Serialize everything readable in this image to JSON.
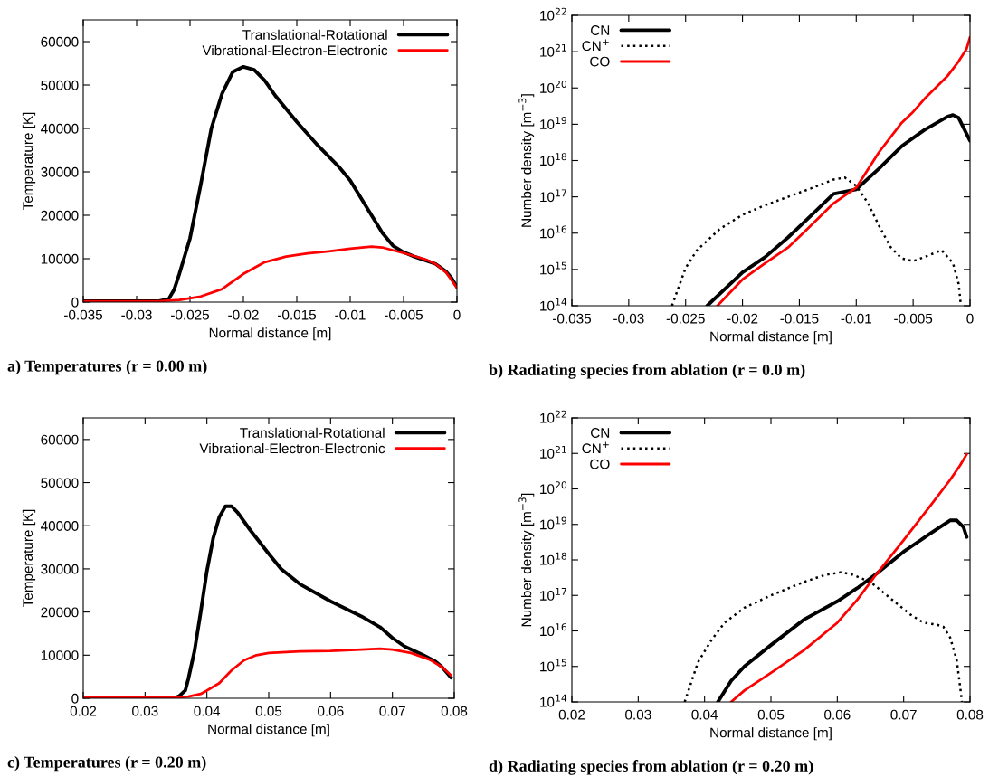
{
  "chart_data": [
    {
      "type": "line",
      "title": "a) Temperatures (r = 0.00 m)",
      "xlabel": "Normal distance [m]",
      "ylabel": "Temperature [K]",
      "xlim": [
        -0.035,
        0
      ],
      "ylim": [
        0,
        65000
      ],
      "xticks": [
        -0.035,
        -0.03,
        -0.025,
        -0.02,
        -0.015,
        -0.01,
        -0.005,
        0
      ],
      "yticks": [
        0,
        10000,
        20000,
        30000,
        40000,
        50000,
        60000
      ],
      "legend": "top right",
      "grid": false,
      "series": [
        {
          "name": "Translational-Rotational",
          "color": "#000000",
          "x": [
            -0.035,
            -0.028,
            -0.027,
            -0.0265,
            -0.026,
            -0.025,
            -0.024,
            -0.023,
            -0.022,
            -0.021,
            -0.02,
            -0.019,
            -0.018,
            -0.017,
            -0.015,
            -0.013,
            -0.011,
            -0.01,
            -0.008,
            -0.007,
            -0.006,
            -0.005,
            -0.004,
            -0.002,
            -0.001,
            -0.0005,
            0
          ],
          "values": [
            200,
            200,
            700,
            2800,
            6500,
            14700,
            27000,
            40000,
            48000,
            53000,
            54200,
            53500,
            51000,
            47500,
            41500,
            36000,
            31000,
            28000,
            20000,
            16000,
            13000,
            11500,
            10500,
            8800,
            7000,
            5500,
            3500
          ]
        },
        {
          "name": "Vibrational-Electron-Electronic",
          "color": "#ff0000",
          "x": [
            -0.035,
            -0.028,
            -0.026,
            -0.024,
            -0.022,
            -0.02,
            -0.018,
            -0.016,
            -0.014,
            -0.012,
            -0.01,
            -0.008,
            -0.007,
            -0.005,
            -0.003,
            -0.002,
            -0.001,
            0
          ],
          "values": [
            200,
            200,
            500,
            1300,
            3000,
            6500,
            9200,
            10500,
            11200,
            11700,
            12300,
            12800,
            12600,
            11300,
            9900,
            8800,
            6800,
            3300
          ]
        }
      ]
    },
    {
      "type": "line",
      "title": "b) Radiating species from ablation (r = 0.0 m)",
      "xlabel": "Normal distance [m]",
      "ylabel": "Number density [m$^{−3}$]",
      "log": "y",
      "xlim": [
        -0.035,
        0
      ],
      "ylim": [
        100000000000000.0,
        1e+22
      ],
      "xticks": [
        -0.035,
        -0.03,
        -0.025,
        -0.02,
        -0.015,
        -0.01,
        -0.005,
        0
      ],
      "yticks": [
        {
          "value": 100000000000000.0,
          "label": "10$^{14}$"
        },
        {
          "value": 1000000000000000.0,
          "label": "10$^{15}$"
        },
        {
          "value": 1e+16,
          "label": "10$^{16}$"
        },
        {
          "value": 1e+17,
          "label": "10$^{17}$"
        },
        {
          "value": 1e+18,
          "label": "10$^{18}$"
        },
        {
          "value": 1e+19,
          "label": "10$^{19}$"
        },
        {
          "value": 1e+20,
          "label": "10$^{20}$"
        },
        {
          "value": 1e+21,
          "label": "10$^{21}$"
        },
        {
          "value": 1e+22,
          "label": "10$^{22}$"
        }
      ],
      "legend": "top left",
      "grid": false,
      "series": [
        {
          "name": "CN",
          "color": "#000000",
          "line_style": "solid",
          "x": [
            -0.0231,
            -0.02,
            -0.018,
            -0.016,
            -0.014,
            -0.012,
            -0.01,
            -0.008,
            -0.006,
            -0.004,
            -0.002,
            -0.0015,
            -0.001,
            0
          ],
          "values": [
            100000000000000.0,
            830000000000000.0,
            2200000000000000.0,
            7600000000000000.0,
            3e+16,
            1.2e+17,
            1.6e+17,
            6e+17,
            2.5e+18,
            7e+18,
            1.6e+19,
            1.8e+19,
            1.5e+19,
            3.5e+18
          ]
        },
        {
          "name": "CN$^{+}$",
          "color": "#000000",
          "line_style": "dotted",
          "x": [
            -0.0262,
            -0.025,
            -0.024,
            -0.022,
            -0.02,
            -0.018,
            -0.016,
            -0.014,
            -0.012,
            -0.011,
            -0.01,
            -0.009,
            -0.008,
            -0.007,
            -0.006,
            -0.005,
            -0.004,
            -0.0025,
            -0.0015,
            -0.001,
            -0.0008
          ],
          "values": [
            100000000000000.0,
            1100000000000000.0,
            3400000000000000.0,
            1.3e+16,
            3.2e+16,
            5.9e+16,
            1e+17,
            1.7e+17,
            3e+17,
            3.4e+17,
            2e+17,
            7e+16,
            1.6e+16,
            4200000000000000.0,
            2000000000000000.0,
            1700000000000000.0,
            2200000000000000.0,
            3400000000000000.0,
            1500000000000000.0,
            400000000000000.0,
            100000000000000.0
          ]
        },
        {
          "name": "CO",
          "color": "#ff0000",
          "line_style": "solid",
          "x": [
            -0.0222,
            -0.02,
            -0.018,
            -0.016,
            -0.014,
            -0.012,
            -0.01,
            -0.008,
            -0.006,
            -0.005,
            -0.004,
            -0.002,
            -0.001,
            -0.0003,
            0
          ],
          "values": [
            100000000000000.0,
            530000000000000.0,
            1500000000000000.0,
            4000000000000000.0,
            1.6e+16,
            6.6e+16,
            1.8e+17,
            1.7e+18,
            1.1e+19,
            2.2e+19,
            5e+19,
            2.1e+20,
            5.4e+20,
            1.2e+21,
            2.5e+21
          ]
        }
      ]
    },
    {
      "type": "line",
      "title": "c) Temperatures (r = 0.20 m)",
      "xlabel": "Normal distance [m]",
      "ylabel": "Temperature [K]",
      "xlim": [
        0.02,
        0.08
      ],
      "ylim": [
        0,
        65000
      ],
      "xticks": [
        0.02,
        0.03,
        0.04,
        0.05,
        0.06,
        0.07,
        0.08
      ],
      "yticks": [
        0,
        10000,
        20000,
        30000,
        40000,
        50000,
        60000
      ],
      "legend": "top right",
      "grid": false,
      "series": [
        {
          "name": "Translational-Rotational",
          "color": "#000000",
          "x": [
            0.02,
            0.035,
            0.0355,
            0.0365,
            0.037,
            0.038,
            0.039,
            0.04,
            0.041,
            0.042,
            0.043,
            0.044,
            0.045,
            0.047,
            0.05,
            0.052,
            0.055,
            0.06,
            0.065,
            0.068,
            0.07,
            0.072,
            0.075,
            0.077,
            0.078,
            0.0795
          ],
          "values": [
            200,
            200,
            500,
            1800,
            4500,
            11000,
            20000,
            29500,
            37000,
            42000,
            44500,
            44500,
            43000,
            39000,
            33500,
            30000,
            26500,
            22500,
            19000,
            16500,
            14000,
            12000,
            10000,
            8500,
            7300,
            4800
          ]
        },
        {
          "name": "Vibrational-Electron-Electronic",
          "color": "#ff0000",
          "x": [
            0.02,
            0.035,
            0.037,
            0.039,
            0.04,
            0.042,
            0.044,
            0.046,
            0.048,
            0.05,
            0.055,
            0.06,
            0.065,
            0.068,
            0.07,
            0.073,
            0.076,
            0.078,
            0.0795
          ],
          "values": [
            200,
            200,
            400,
            1000,
            1800,
            3500,
            6500,
            8800,
            10000,
            10500,
            10900,
            11000,
            11300,
            11500,
            11300,
            10500,
            9000,
            7300,
            5300
          ]
        }
      ]
    },
    {
      "type": "line",
      "title": "d) Radiating species from ablation (r = 0.20 m)",
      "xlabel": "Normal distance [m]",
      "ylabel": "Number density [m$^{−3}$]",
      "log": "y",
      "xlim": [
        0.02,
        0.08
      ],
      "ylim": [
        100000000000000.0,
        1e+22
      ],
      "xticks": [
        0.02,
        0.03,
        0.04,
        0.05,
        0.06,
        0.07,
        0.08
      ],
      "yticks": [
        {
          "value": 100000000000000.0,
          "label": "10$^{14}$"
        },
        {
          "value": 1000000000000000.0,
          "label": "10$^{15}$"
        },
        {
          "value": 1e+16,
          "label": "10$^{16}$"
        },
        {
          "value": 1e+17,
          "label": "10$^{17}$"
        },
        {
          "value": 1e+18,
          "label": "10$^{18}$"
        },
        {
          "value": 1e+19,
          "label": "10$^{19}$"
        },
        {
          "value": 1e+20,
          "label": "10$^{20}$"
        },
        {
          "value": 1e+21,
          "label": "10$^{21}$"
        },
        {
          "value": 1e+22,
          "label": "10$^{22}$"
        }
      ],
      "legend": "top left",
      "grid": false,
      "series": [
        {
          "name": "CN",
          "color": "#000000",
          "line_style": "solid",
          "x": [
            0.042,
            0.044,
            0.046,
            0.05,
            0.055,
            0.06,
            0.063,
            0.066,
            0.07,
            0.074,
            0.077,
            0.078,
            0.079,
            0.0795
          ],
          "values": [
            100000000000000.0,
            390000000000000.0,
            1000000000000000.0,
            4000000000000000.0,
            2.1e+16,
            6.8e+16,
            1.6e+17,
            4.2e+17,
            1.7e+18,
            5.5e+18,
            1.3e+19,
            1.3e+19,
            8.5e+18,
            4.4e+18
          ]
        },
        {
          "name": "CN$^{+}$",
          "color": "#000000",
          "line_style": "dotted",
          "x": [
            0.037,
            0.039,
            0.041,
            0.043,
            0.046,
            0.05,
            0.055,
            0.058,
            0.0605,
            0.062,
            0.065,
            0.068,
            0.071,
            0.073,
            0.075,
            0.076,
            0.077,
            0.078,
            0.0788
          ],
          "values": [
            100000000000000.0,
            1300000000000000.0,
            5400000000000000.0,
            1.7e+16,
            4.5e+16,
            1e+17,
            2.4e+17,
            3.7e+17,
            4.5e+17,
            4e+17,
            2.4e+17,
            8.3e+16,
            2.9e+16,
            1.7e+16,
            1.5e+16,
            1.3e+16,
            6600000000000000.0,
            1500000000000000.0,
            100000000000000.0
          ]
        },
        {
          "name": "CO",
          "color": "#ff0000",
          "line_style": "solid",
          "x": [
            0.044,
            0.046,
            0.05,
            0.055,
            0.06,
            0.063,
            0.066,
            0.07,
            0.074,
            0.077,
            0.0785,
            0.0795
          ],
          "values": [
            100000000000000.0,
            210000000000000.0,
            660000000000000.0,
            2900000000000000.0,
            1.7e+16,
            7.5e+16,
            4.2e+17,
            3.6e+18,
            3.3e+19,
            1.8e+20,
            4.6e+20,
            9.5e+20
          ]
        }
      ]
    }
  ]
}
